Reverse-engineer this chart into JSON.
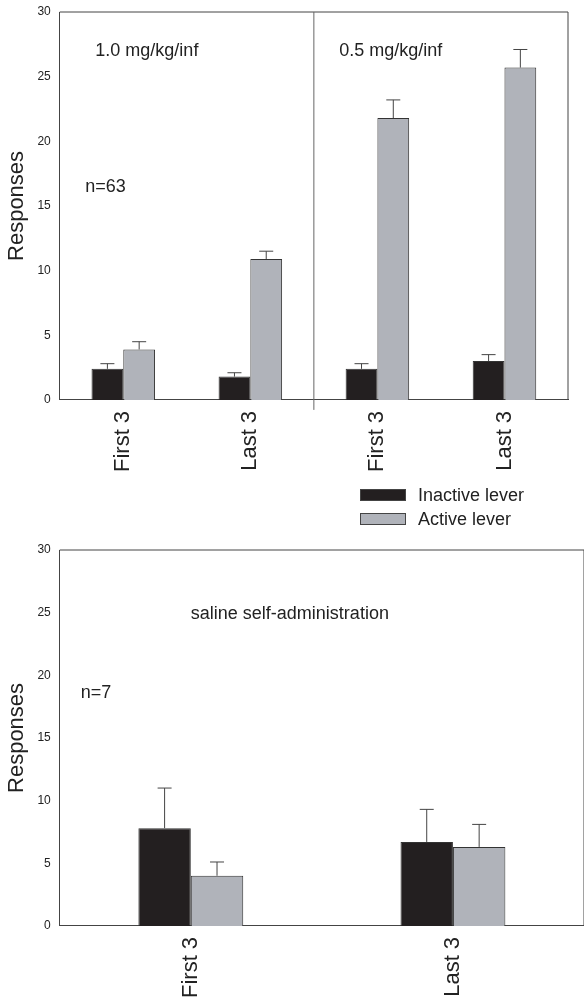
{
  "chart_data": [
    {
      "type": "bar",
      "ylabel": "Responses",
      "categories": [
        "First 3",
        "Last 3",
        "First 3",
        "Last 3"
      ],
      "ylim": [
        0,
        30
      ],
      "yticks": [
        0,
        5,
        10,
        15,
        20,
        25,
        30
      ],
      "grid": false,
      "legend": false,
      "series": [
        {
          "color": "#231f20",
          "values": [
            2.4,
            1.8,
            2.4,
            3.0
          ],
          "errors": [
            [
              2.4,
              2.8
            ],
            [
              1.8,
              2.1
            ],
            [
              2.4,
              2.8
            ],
            [
              3.0,
              3.5
            ]
          ]
        },
        {
          "color": "#b0b3ba",
          "values": [
            3.9,
            10.9,
            21.8,
            25.7
          ],
          "errors": [
            [
              3.9,
              4.5
            ],
            [
              10.9,
              11.5
            ],
            [
              21.8,
              23.2
            ],
            [
              25.7,
              27.1
            ]
          ]
        }
      ],
      "annotations": [
        "1.0 mg/kg/inf",
        "0.5 mg/kg/inf",
        "n=63"
      ]
    },
    {
      "type": "bar",
      "ylabel": "Responses",
      "categories": [
        "First 3",
        "Last 3"
      ],
      "ylim": [
        0,
        30
      ],
      "yticks": [
        0,
        5,
        10,
        15,
        20,
        25,
        30
      ],
      "grid": false,
      "legend": "top right",
      "series": [
        {
          "name": "Inactive lever",
          "color": "#231f20",
          "values": [
            7.8,
            6.7
          ],
          "errors": [
            [
              7.8,
              11.0
            ],
            [
              6.7,
              9.3
            ]
          ]
        },
        {
          "name": "Active lever",
          "color": "#b0b3ba",
          "values": [
            4.0,
            6.3
          ],
          "errors": [
            [
              4.0,
              5.1
            ],
            [
              6.3,
              8.1
            ]
          ]
        }
      ],
      "annotations": [
        "saline self-administration",
        "n=7"
      ]
    }
  ]
}
